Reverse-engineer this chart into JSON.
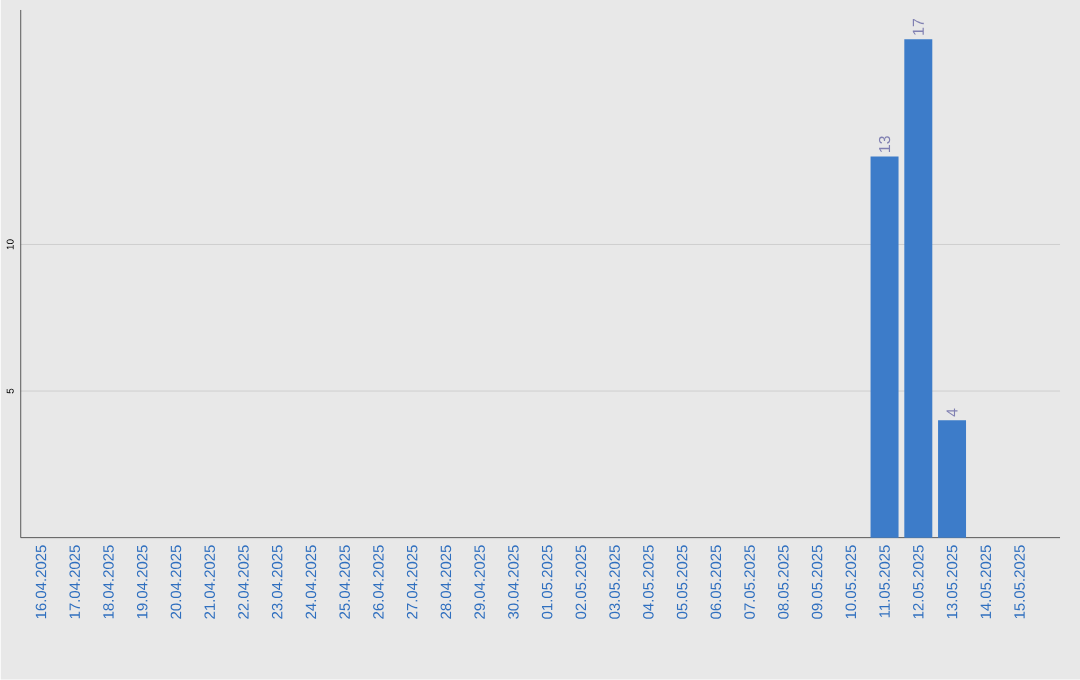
{
  "chart_data": {
    "type": "bar",
    "categories": [
      "16.04.2025",
      "17.04.2025",
      "18.04.2025",
      "19.04.2025",
      "20.04.2025",
      "21.04.2025",
      "22.04.2025",
      "23.04.2025",
      "24.04.2025",
      "25.04.2025",
      "26.04.2025",
      "27.04.2025",
      "28.04.2025",
      "29.04.2025",
      "30.04.2025",
      "01.05.2025",
      "02.05.2025",
      "03.05.2025",
      "04.05.2025",
      "05.05.2025",
      "06.05.2025",
      "07.05.2025",
      "08.05.2025",
      "09.05.2025",
      "10.05.2025",
      "11.05.2025",
      "12.05.2025",
      "13.05.2025",
      "14.05.2025",
      "15.05.2025"
    ],
    "values": [
      0,
      0,
      0,
      0,
      0,
      0,
      0,
      0,
      0,
      0,
      0,
      0,
      0,
      0,
      0,
      0,
      0,
      0,
      0,
      0,
      0,
      0,
      0,
      0,
      0,
      13,
      17,
      4,
      0,
      0
    ],
    "value_labels": [
      null,
      null,
      null,
      null,
      null,
      null,
      null,
      null,
      null,
      null,
      null,
      null,
      null,
      null,
      null,
      null,
      null,
      null,
      null,
      null,
      null,
      null,
      null,
      null,
      null,
      "13",
      "17",
      "4",
      null,
      null
    ],
    "color": "#3d7cc9",
    "ylim": [
      0,
      18
    ],
    "yticks": [
      5,
      10
    ],
    "grid": "y"
  }
}
